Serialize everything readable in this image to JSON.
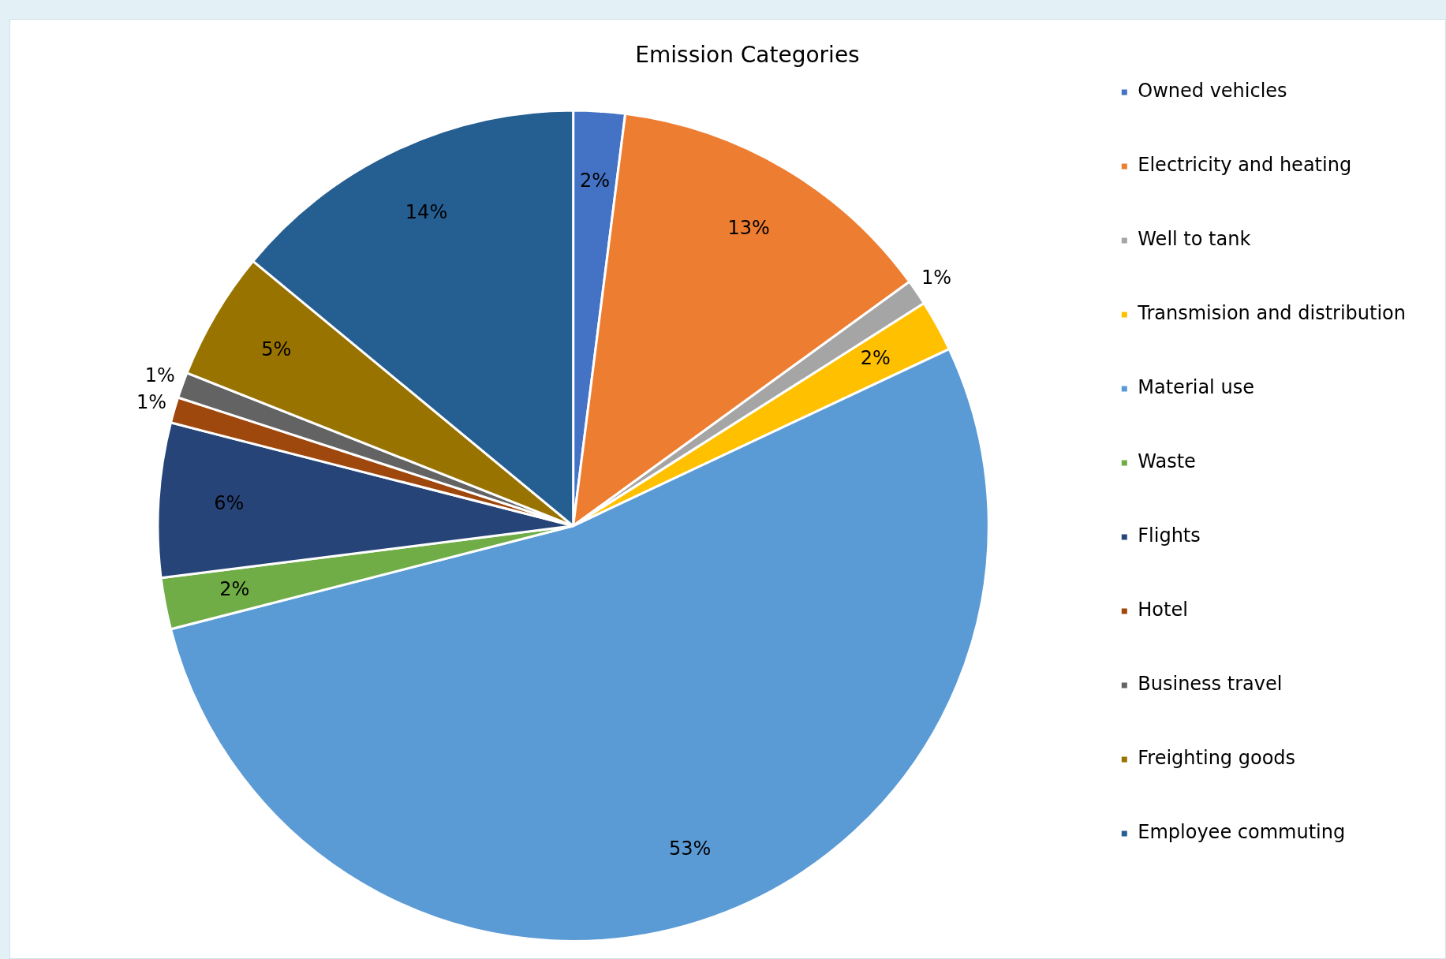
{
  "chart_data": {
    "type": "pie",
    "title": "Emission Categories",
    "categories": [
      "Owned vehicles",
      "Electricity and heating",
      "Well to tank",
      "Transmision and distribution",
      "Material use",
      "Waste",
      "Flights",
      "Hotel",
      "Business travel",
      "Freighting goods",
      "Employee commuting"
    ],
    "values": [
      2,
      13,
      1,
      2,
      53,
      2,
      6,
      1,
      1,
      5,
      14
    ],
    "value_labels": [
      "2%",
      "13%",
      "1%",
      "2%",
      "53%",
      "2%",
      "6%",
      "1%",
      "1%",
      "5%",
      "14%"
    ],
    "colors": [
      "#4472c4",
      "#ed7d31",
      "#a5a5a5",
      "#ffc000",
      "#5b9bd5",
      "#70ad47",
      "#264478",
      "#9e480e",
      "#636363",
      "#997300",
      "#255e91"
    ],
    "legend": "right"
  }
}
